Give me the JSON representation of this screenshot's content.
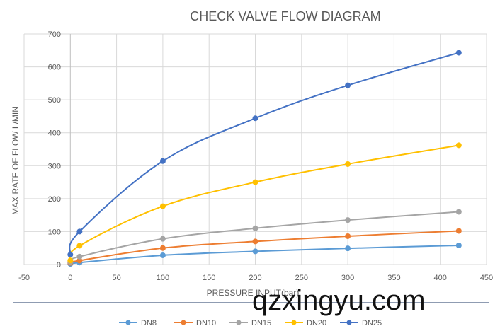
{
  "chart_data": {
    "type": "line",
    "title": "CHECK VALVE FLOW DIAGRAM",
    "xlabel": "PRESSURE INPUT(bar)",
    "ylabel": "MAX RATE OF FLOW  L/MIN",
    "xlim": [
      -50,
      450
    ],
    "ylim": [
      0,
      700
    ],
    "xticks": [
      -50,
      0,
      50,
      100,
      150,
      200,
      250,
      300,
      350,
      400,
      450
    ],
    "yticks": [
      0,
      100,
      200,
      300,
      400,
      500,
      600,
      700
    ],
    "grid": true,
    "legend_position": "bottom",
    "x": [
      0,
      10,
      100,
      200,
      300,
      420
    ],
    "series": [
      {
        "name": "DN8",
        "color": "#5B9BD5",
        "values": [
          2,
          6,
          28,
          40,
          49,
          58
        ]
      },
      {
        "name": "DN10",
        "color": "#ED7D31",
        "values": [
          5,
          12,
          50,
          70,
          86,
          102
        ]
      },
      {
        "name": "DN15",
        "color": "#A5A5A5",
        "values": [
          8,
          24,
          78,
          110,
          135,
          160
        ]
      },
      {
        "name": "DN20",
        "color": "#FFC000",
        "values": [
          12,
          57,
          177,
          250,
          305,
          362
        ]
      },
      {
        "name": "DN25",
        "color": "#4472C4",
        "values": [
          30,
          100,
          314,
          444,
          544,
          643
        ]
      }
    ]
  },
  "watermark": "qzxingyu.com"
}
